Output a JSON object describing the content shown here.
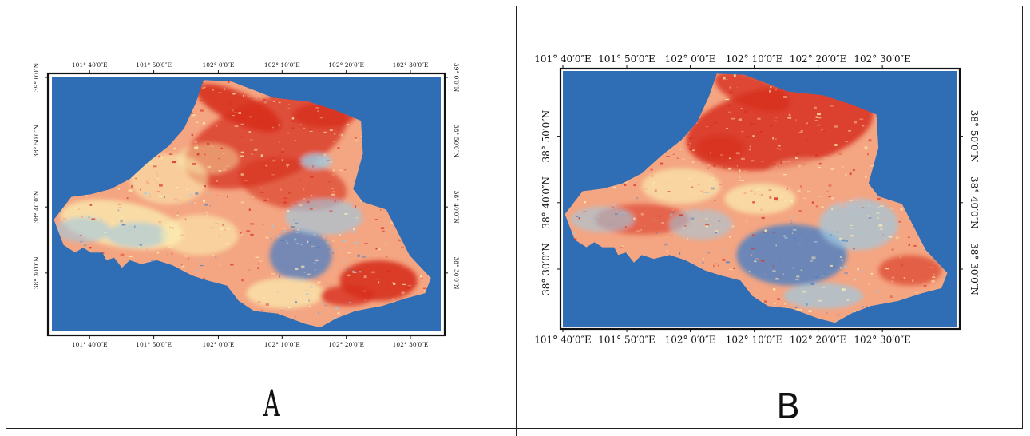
{
  "figure": {
    "panels": [
      {
        "id": "A",
        "label": "A",
        "lon_labels_top": [
          "101° 40′0″E",
          "101° 50′0″E",
          "102° 0′0″E",
          "102° 10′0″E",
          "102° 20′0″E",
          "102° 30′0″E"
        ],
        "lon_labels_bottom": [
          "101° 40′0″E",
          "101° 50′0″E",
          "102° 0′0″E",
          "102° 10′0″E",
          "102° 20′0″E",
          "102° 30′0″E"
        ],
        "lat_labels": [
          "39° 0′0″N",
          "38° 50′0″N",
          "38° 40′0″N",
          "38° 30′0″N"
        ]
      },
      {
        "id": "B",
        "label": "B",
        "lon_labels_top": [
          "101° 40′0″E",
          "101° 50′0″E",
          "102° 0′0″E",
          "102° 10′0″E",
          "102° 20′0″E",
          "102° 30′0″E"
        ],
        "lon_labels_bottom": [
          "101° 40′0″E",
          "101° 50′0″E",
          "102° 0′0″E",
          "102° 10′0″E",
          "102° 20′0″E",
          "102° 30′0″E"
        ],
        "lat_labels": [
          "38° 50′0″N",
          "38° 40′0″N",
          "38° 30′0″N"
        ]
      }
    ],
    "colors": {
      "background_water": "#2f6db5",
      "high": "#d7301f",
      "mid_high": "#f4a582",
      "mid": "#fbeeb0",
      "low": "#9ecae1",
      "very_low": "#4a80c4"
    }
  }
}
